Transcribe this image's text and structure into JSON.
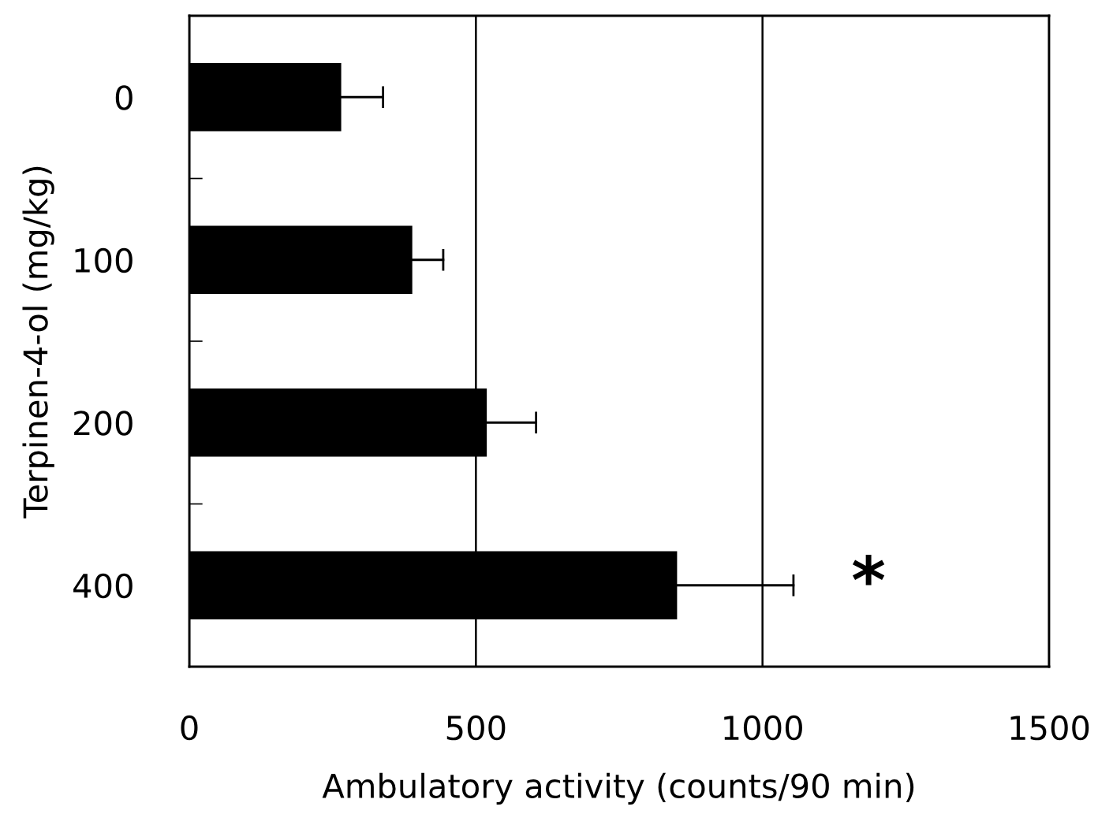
{
  "chart_data": {
    "type": "bar",
    "orientation": "horizontal",
    "xlabel": "Ambulatory activity (counts/90 min)",
    "ylabel": "Terpinen-4-ol (mg/kg)",
    "categories": [
      "0",
      "100",
      "200",
      "400"
    ],
    "values": [
      265,
      389,
      519,
      851
    ],
    "errors": [
      [
        265,
        338
      ],
      [
        389,
        443
      ],
      [
        519,
        605
      ],
      [
        851,
        1054
      ]
    ],
    "color": "#000000",
    "xlim": [
      0,
      1500
    ],
    "xticks": [
      0,
      500,
      1000,
      1500
    ],
    "grid": "x",
    "annotations": [
      "*"
    ]
  }
}
